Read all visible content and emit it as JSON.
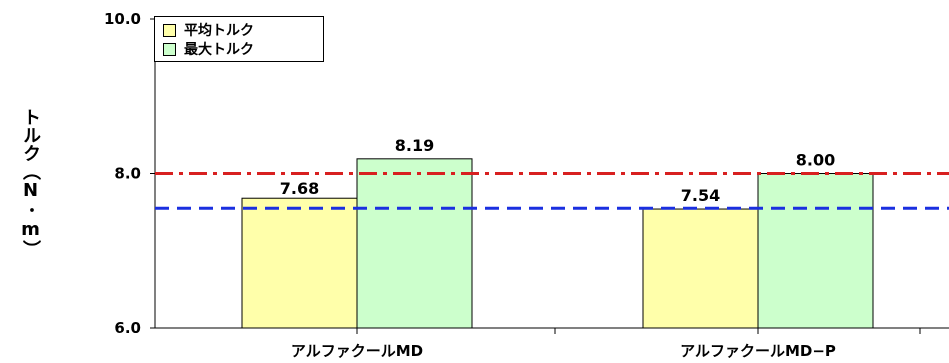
{
  "colors": {
    "series_avg": "#FFFFAA",
    "series_max": "#CCFFCC",
    "ref_red": "#D82020",
    "ref_blue": "#1A2FE0"
  },
  "chart_data": {
    "type": "bar",
    "title": "",
    "xlabel": "",
    "ylabel": "トルク（N･m）",
    "ylim": [
      6.0,
      10.0
    ],
    "yticks": [
      "6.0",
      "8.0",
      "10.0"
    ],
    "categories": [
      "アルファクールMD",
      "アルファクールMD−P"
    ],
    "series": [
      {
        "name": "平均トルク",
        "values": [
          7.68,
          7.54
        ],
        "labels": [
          "7.68",
          "7.54"
        ]
      },
      {
        "name": "最大トルク",
        "values": [
          8.19,
          8.0
        ],
        "labels": [
          "8.19",
          "8.00"
        ]
      }
    ],
    "reference_lines": [
      {
        "style": "dash-dot",
        "color": "red",
        "value": 8.0
      },
      {
        "style": "dashed",
        "color": "blue",
        "value": 7.55
      }
    ],
    "legend_position": "top-left",
    "grid": false
  }
}
